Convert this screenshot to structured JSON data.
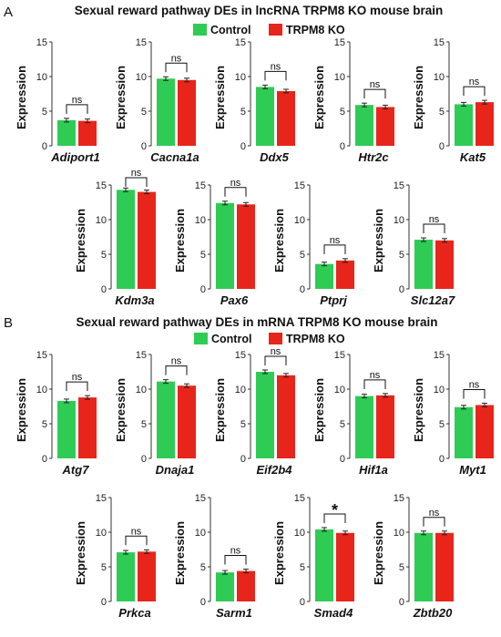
{
  "colors": {
    "control": "#2ecc55",
    "ko": "#e8251a",
    "bracket": "#111111"
  },
  "chart_data": [
    {
      "type": "bar",
      "panel_label": "A",
      "title": "Sexual reward pathway DEs in lncRNA TRPM8 KO mouse brain",
      "legend": [
        "Control",
        "TRPM8 KO"
      ],
      "ylabel": "Expression",
      "ylim": [
        0,
        15
      ],
      "yticks": [
        "0",
        "5",
        "10",
        "15"
      ],
      "genes": [
        {
          "name": "Adiport1",
          "values": [
            3.7,
            3.6
          ],
          "sig": "ns"
        },
        {
          "name": "Cacna1a",
          "values": [
            9.7,
            9.5
          ],
          "sig": "ns"
        },
        {
          "name": "Ddx5",
          "values": [
            8.5,
            7.9
          ],
          "sig": "ns"
        },
        {
          "name": "Htr2c",
          "values": [
            5.9,
            5.6
          ],
          "sig": "ns"
        },
        {
          "name": "Kat5",
          "values": [
            6.0,
            6.3
          ],
          "sig": "ns"
        },
        {
          "name": "Kdm3a",
          "values": [
            14.3,
            14.0
          ],
          "sig": "ns"
        },
        {
          "name": "Pax6",
          "values": [
            12.4,
            12.2
          ],
          "sig": "ns"
        },
        {
          "name": "Ptprj",
          "values": [
            3.6,
            4.1
          ],
          "sig": "ns"
        },
        {
          "name": "Slc12a7",
          "values": [
            7.1,
            7.0
          ],
          "sig": "ns"
        }
      ]
    },
    {
      "type": "bar",
      "panel_label": "B",
      "title": "Sexual reward pathway DEs in mRNA TRPM8 KO mouse brain",
      "legend": [
        "Control",
        "TRPM8 KO"
      ],
      "ylabel": "Expression",
      "ylim": [
        0,
        15
      ],
      "yticks": [
        "0",
        "5",
        "10",
        "15"
      ],
      "genes": [
        {
          "name": "Atg7",
          "values": [
            8.3,
            8.8
          ],
          "sig": "ns"
        },
        {
          "name": "Dnaja1",
          "values": [
            11.1,
            10.5
          ],
          "sig": "ns"
        },
        {
          "name": "Eif2b4",
          "values": [
            12.5,
            12.0
          ],
          "sig": "ns"
        },
        {
          "name": "Hif1a",
          "values": [
            9.0,
            9.1
          ],
          "sig": "ns"
        },
        {
          "name": "Myt1",
          "values": [
            7.4,
            7.7
          ],
          "sig": "ns"
        },
        {
          "name": "Prkca",
          "values": [
            7.1,
            7.2
          ],
          "sig": "ns"
        },
        {
          "name": "Sarm1",
          "values": [
            4.2,
            4.4
          ],
          "sig": "ns"
        },
        {
          "name": "Smad4",
          "values": [
            10.4,
            9.9
          ],
          "sig": "*"
        },
        {
          "name": "Zbtb20",
          "values": [
            9.9,
            9.9
          ],
          "sig": "ns"
        }
      ]
    }
  ]
}
